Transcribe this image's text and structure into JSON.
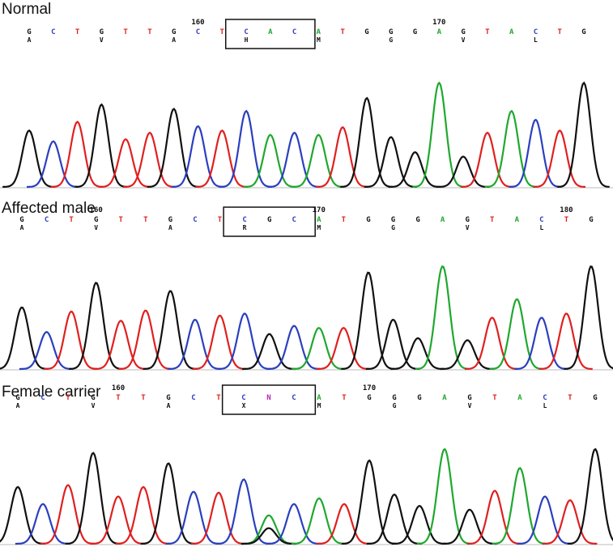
{
  "chart_data": [
    {
      "type": "line",
      "title": "Normal",
      "bases": [
        "G",
        "C",
        "T",
        "G",
        "T",
        "T",
        "G",
        "C",
        "T",
        "C",
        "A",
        "C",
        "A",
        "T",
        "G",
        "G",
        "G",
        "A",
        "G",
        "T",
        "A",
        "C",
        "T",
        "G"
      ],
      "aa": [
        "A",
        "",
        "",
        "V",
        "",
        "",
        "A",
        "",
        "",
        "H",
        "",
        "",
        "M",
        "",
        "",
        "G",
        "",
        "",
        "V",
        "",
        "",
        "L",
        "",
        ""
      ],
      "positions": [
        {
          "label": "160",
          "base_index": 7
        },
        {
          "label": "170",
          "base_index": 17
        }
      ],
      "highlight_bases": [
        9,
        11
      ],
      "peak_heights": [
        0.52,
        0.42,
        0.6,
        0.76,
        0.44,
        0.5,
        0.72,
        0.56,
        0.52,
        0.7,
        0.48,
        0.5,
        0.48,
        0.55,
        0.82,
        0.46,
        0.32,
        0.96,
        0.28,
        0.5,
        0.7,
        0.62,
        0.52,
        0.96
      ],
      "ylim": [
        0,
        1
      ]
    },
    {
      "type": "line",
      "title": "Affected male",
      "bases": [
        "G",
        "C",
        "T",
        "G",
        "T",
        "T",
        "G",
        "C",
        "T",
        "C",
        "G",
        "C",
        "A",
        "T",
        "G",
        "G",
        "G",
        "A",
        "G",
        "T",
        "A",
        "C",
        "T",
        "G"
      ],
      "aa": [
        "A",
        "",
        "",
        "V",
        "",
        "",
        "A",
        "",
        "",
        "R",
        "",
        "",
        "M",
        "",
        "",
        "G",
        "",
        "",
        "V",
        "",
        "",
        "L",
        "",
        ""
      ],
      "positions": [
        {
          "label": "160",
          "base_index": 3
        },
        {
          "label": "170",
          "base_index": 12
        },
        {
          "label": "180",
          "base_index": 22
        }
      ],
      "highlight_bases": [
        9,
        11
      ],
      "peak_heights": [
        0.6,
        0.36,
        0.56,
        0.84,
        0.47,
        0.57,
        0.76,
        0.48,
        0.52,
        0.54,
        0.34,
        0.42,
        0.4,
        0.4,
        0.94,
        0.48,
        0.3,
        1.0,
        0.28,
        0.5,
        0.68,
        0.5,
        0.54,
        1.0
      ],
      "ylim": [
        0,
        1
      ]
    },
    {
      "type": "line",
      "title": "Female carrier",
      "bases": [
        "G",
        "C",
        "T",
        "G",
        "T",
        "T",
        "G",
        "C",
        "T",
        "C",
        "N",
        "C",
        "A",
        "T",
        "G",
        "G",
        "G",
        "A",
        "G",
        "T",
        "A",
        "C",
        "T",
        "G"
      ],
      "aa": [
        "A",
        "",
        "",
        "V",
        "",
        "",
        "A",
        "",
        "",
        "X",
        "",
        "",
        "M",
        "",
        "",
        "G",
        "",
        "",
        "V",
        "",
        "",
        "L",
        "",
        ""
      ],
      "positions": [
        {
          "label": "160",
          "base_index": 4
        },
        {
          "label": "170",
          "base_index": 14
        }
      ],
      "highlight_bases": [
        9,
        11
      ],
      "mixed_base_index": 10,
      "peak_heights": [
        0.6,
        0.42,
        0.62,
        0.96,
        0.5,
        0.6,
        0.85,
        0.55,
        0.54,
        0.68,
        0.3,
        0.42,
        0.48,
        0.42,
        0.88,
        0.52,
        0.4,
        1.0,
        0.36,
        0.56,
        0.8,
        0.5,
        0.46,
        1.0
      ],
      "ylim": [
        0,
        1
      ]
    }
  ],
  "colors": {
    "A": "#1fa82e",
    "C": "#2b3fbf",
    "G": "#111111",
    "T": "#e02020",
    "N": "#b81fb8"
  }
}
